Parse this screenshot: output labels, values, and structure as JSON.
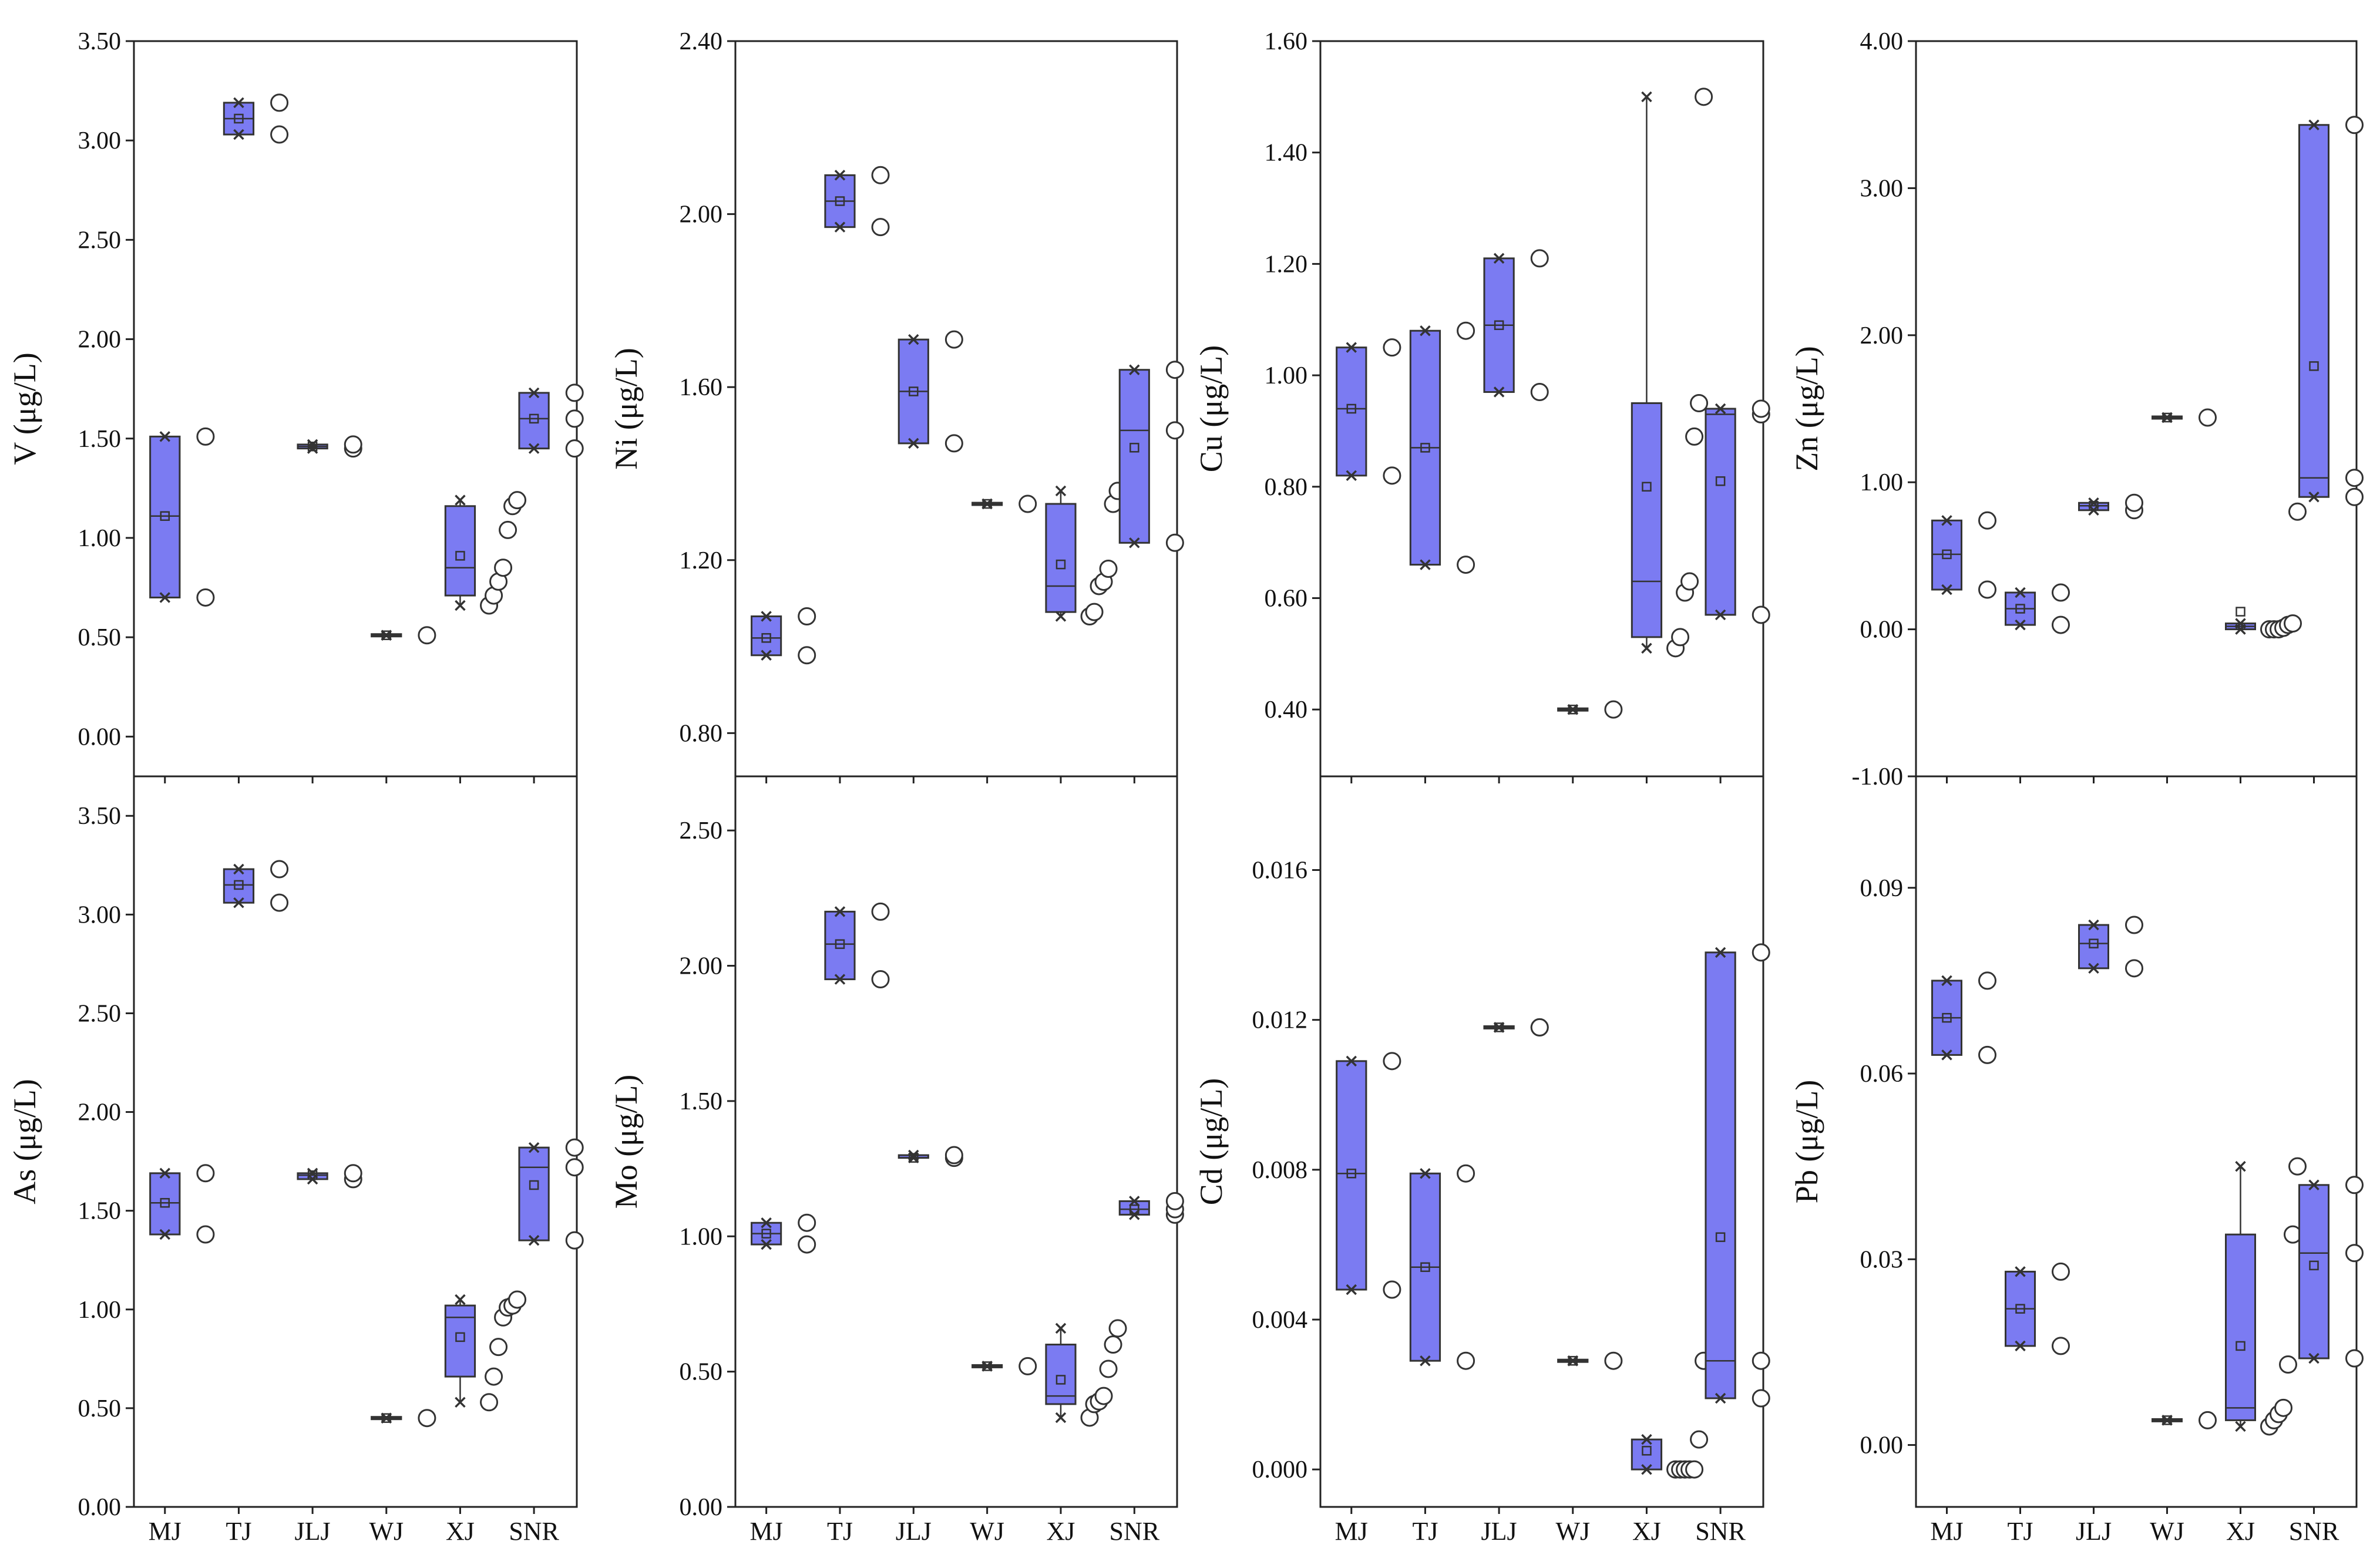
{
  "figure": {
    "categories": [
      "MJ",
      "TJ",
      "JLJ",
      "WJ",
      "XJ",
      "SNR"
    ],
    "colors": {
      "box_fill": "#7b7bf2",
      "box_stroke": "#333333",
      "outlier_fill": "#ffffff"
    }
  },
  "chart_data": [
    {
      "type": "box",
      "ylabel": "V (μg/L)",
      "ylim": [
        -0.2,
        3.5
      ],
      "yticks": [
        "0.00",
        "0.50",
        "1.00",
        "1.50",
        "2.00",
        "2.50",
        "3.00",
        "3.50"
      ],
      "boxes": [
        {
          "category": "MJ",
          "q1": 0.7,
          "median": 1.11,
          "q3": 1.51,
          "mean": 1.11,
          "min": 0.7,
          "max": 1.51,
          "points": [
            0.7,
            1.51
          ]
        },
        {
          "category": "TJ",
          "q1": 3.03,
          "median": 3.11,
          "q3": 3.19,
          "mean": 3.11,
          "min": 3.03,
          "max": 3.19,
          "points": [
            3.03,
            3.19
          ]
        },
        {
          "category": "JLJ",
          "q1": 1.45,
          "median": 1.46,
          "q3": 1.47,
          "mean": 1.46,
          "min": 1.45,
          "max": 1.47,
          "points": [
            1.45,
            1.47
          ]
        },
        {
          "category": "WJ",
          "q1": 0.51,
          "median": 0.51,
          "q3": 0.51,
          "mean": 0.51,
          "min": 0.51,
          "max": 0.51,
          "points": [
            0.51
          ]
        },
        {
          "category": "XJ",
          "q1": 0.71,
          "median": 0.85,
          "q3": 1.16,
          "mean": 0.91,
          "min": 0.66,
          "max": 1.19,
          "points": [
            0.66,
            0.71,
            0.78,
            0.85,
            1.04,
            1.16,
            1.19
          ]
        },
        {
          "category": "SNR",
          "q1": 1.45,
          "median": 1.6,
          "q3": 1.73,
          "mean": 1.6,
          "min": 1.45,
          "max": 1.73,
          "points": [
            1.45,
            1.6,
            1.73
          ]
        }
      ]
    },
    {
      "type": "box",
      "ylabel": "Ni (μg/L)",
      "ylim": [
        0.7,
        2.4
      ],
      "yticks": [
        "0.80",
        "1.20",
        "1.60",
        "2.00",
        "2.40"
      ],
      "boxes": [
        {
          "category": "MJ",
          "q1": 0.98,
          "median": 1.02,
          "q3": 1.07,
          "mean": 1.02,
          "min": 0.98,
          "max": 1.07,
          "points": [
            0.98,
            1.07
          ]
        },
        {
          "category": "TJ",
          "q1": 1.97,
          "median": 2.03,
          "q3": 2.09,
          "mean": 2.03,
          "min": 1.97,
          "max": 2.09,
          "points": [
            1.97,
            2.09
          ]
        },
        {
          "category": "JLJ",
          "q1": 1.47,
          "median": 1.59,
          "q3": 1.71,
          "mean": 1.59,
          "min": 1.47,
          "max": 1.71,
          "points": [
            1.47,
            1.71
          ]
        },
        {
          "category": "WJ",
          "q1": 1.33,
          "median": 1.33,
          "q3": 1.33,
          "mean": 1.33,
          "min": 1.33,
          "max": 1.33,
          "points": [
            1.33
          ]
        },
        {
          "category": "XJ",
          "q1": 1.08,
          "median": 1.14,
          "q3": 1.33,
          "mean": 1.19,
          "min": 1.07,
          "max": 1.36,
          "points": [
            1.07,
            1.08,
            1.14,
            1.15,
            1.18,
            1.33,
            1.36
          ]
        },
        {
          "category": "SNR",
          "q1": 1.24,
          "median": 1.5,
          "q3": 1.64,
          "mean": 1.46,
          "min": 1.24,
          "max": 1.64,
          "points": [
            1.24,
            1.5,
            1.64
          ]
        }
      ]
    },
    {
      "type": "box",
      "ylabel": "Cu (μg/L)",
      "ylim": [
        0.28,
        1.6
      ],
      "yticks": [
        "0.40",
        "0.60",
        "0.80",
        "1.00",
        "1.20",
        "1.40",
        "1.60"
      ],
      "boxes": [
        {
          "category": "MJ",
          "q1": 0.82,
          "median": 0.94,
          "q3": 1.05,
          "mean": 0.94,
          "min": 0.82,
          "max": 1.05,
          "points": [
            0.82,
            1.05
          ]
        },
        {
          "category": "TJ",
          "q1": 0.66,
          "median": 0.87,
          "q3": 1.08,
          "mean": 0.87,
          "min": 0.66,
          "max": 1.08,
          "points": [
            0.66,
            1.08
          ]
        },
        {
          "category": "JLJ",
          "q1": 0.97,
          "median": 1.09,
          "q3": 1.21,
          "mean": 1.09,
          "min": 0.97,
          "max": 1.21,
          "points": [
            0.97,
            1.21
          ]
        },
        {
          "category": "WJ",
          "q1": 0.4,
          "median": 0.4,
          "q3": 0.4,
          "mean": 0.4,
          "min": 0.4,
          "max": 0.4,
          "points": [
            0.4
          ]
        },
        {
          "category": "XJ",
          "q1": 0.53,
          "median": 0.63,
          "q3": 0.95,
          "mean": 0.8,
          "min": 0.51,
          "max": 1.5,
          "points": [
            0.51,
            0.53,
            0.61,
            0.63,
            0.89,
            0.95,
            1.5
          ]
        },
        {
          "category": "SNR",
          "q1": 0.57,
          "median": 0.93,
          "q3": 0.94,
          "mean": 0.81,
          "min": 0.57,
          "max": 0.94,
          "points": [
            0.57,
            0.93,
            0.94
          ]
        }
      ]
    },
    {
      "type": "box",
      "ylabel": "Zn (μg/L)",
      "ylim": [
        -1.0,
        4.0
      ],
      "yticks": [
        "-1.00",
        "0.00",
        "1.00",
        "2.00",
        "3.00",
        "4.00"
      ],
      "boxes": [
        {
          "category": "MJ",
          "q1": 0.27,
          "median": 0.51,
          "q3": 0.74,
          "mean": 0.51,
          "min": 0.27,
          "max": 0.74,
          "points": [
            0.27,
            0.74
          ]
        },
        {
          "category": "TJ",
          "q1": 0.03,
          "median": 0.14,
          "q3": 0.25,
          "mean": 0.14,
          "min": 0.03,
          "max": 0.25,
          "points": [
            0.03,
            0.25
          ]
        },
        {
          "category": "JLJ",
          "q1": 0.81,
          "median": 0.84,
          "q3": 0.86,
          "mean": 0.84,
          "min": 0.81,
          "max": 0.86,
          "points": [
            0.81,
            0.86
          ]
        },
        {
          "category": "WJ",
          "q1": 1.44,
          "median": 1.44,
          "q3": 1.44,
          "mean": 1.44,
          "min": 1.44,
          "max": 1.44,
          "points": [
            1.44
          ]
        },
        {
          "category": "XJ",
          "q1": 0.0,
          "median": 0.02,
          "q3": 0.04,
          "mean": 0.12,
          "min": 0.0,
          "max": 0.04,
          "points": [
            0.0,
            0.0,
            0.0,
            0.01,
            0.03,
            0.04,
            0.8
          ]
        },
        {
          "category": "SNR",
          "q1": 0.9,
          "median": 1.03,
          "q3": 3.43,
          "mean": 1.79,
          "min": 0.9,
          "max": 3.43,
          "points": [
            0.9,
            1.03,
            3.43
          ]
        }
      ]
    },
    {
      "type": "box",
      "ylabel": "As (μg/L)",
      "ylim": [
        0.0,
        3.7
      ],
      "yticks": [
        "0.00",
        "0.50",
        "1.00",
        "1.50",
        "2.00",
        "2.50",
        "3.00",
        "3.50"
      ],
      "boxes": [
        {
          "category": "MJ",
          "q1": 1.38,
          "median": 1.54,
          "q3": 1.69,
          "mean": 1.54,
          "min": 1.38,
          "max": 1.69,
          "points": [
            1.38,
            1.69
          ]
        },
        {
          "category": "TJ",
          "q1": 3.06,
          "median": 3.15,
          "q3": 3.23,
          "mean": 3.15,
          "min": 3.06,
          "max": 3.23,
          "points": [
            3.06,
            3.23
          ]
        },
        {
          "category": "JLJ",
          "q1": 1.66,
          "median": 1.68,
          "q3": 1.69,
          "mean": 1.68,
          "min": 1.66,
          "max": 1.69,
          "points": [
            1.66,
            1.69
          ]
        },
        {
          "category": "WJ",
          "q1": 0.45,
          "median": 0.45,
          "q3": 0.45,
          "mean": 0.45,
          "min": 0.45,
          "max": 0.45,
          "points": [
            0.45
          ]
        },
        {
          "category": "XJ",
          "q1": 0.66,
          "median": 0.96,
          "q3": 1.02,
          "mean": 0.86,
          "min": 0.53,
          "max": 1.05,
          "points": [
            0.53,
            0.66,
            0.81,
            0.96,
            1.01,
            1.02,
            1.05
          ]
        },
        {
          "category": "SNR",
          "q1": 1.35,
          "median": 1.72,
          "q3": 1.82,
          "mean": 1.63,
          "min": 1.35,
          "max": 1.82,
          "points": [
            1.35,
            1.72,
            1.82
          ]
        }
      ]
    },
    {
      "type": "box",
      "ylabel": "Mo (μg/L)",
      "ylim": [
        0.0,
        2.7
      ],
      "yticks": [
        "0.00",
        "0.50",
        "1.00",
        "1.50",
        "2.00",
        "2.50"
      ],
      "boxes": [
        {
          "category": "MJ",
          "q1": 0.97,
          "median": 1.01,
          "q3": 1.05,
          "mean": 1.01,
          "min": 0.97,
          "max": 1.05,
          "points": [
            0.97,
            1.05
          ]
        },
        {
          "category": "TJ",
          "q1": 1.95,
          "median": 2.08,
          "q3": 2.2,
          "mean": 2.08,
          "min": 1.95,
          "max": 2.2,
          "points": [
            1.95,
            2.2
          ]
        },
        {
          "category": "JLJ",
          "q1": 1.29,
          "median": 1.29,
          "q3": 1.3,
          "mean": 1.29,
          "min": 1.29,
          "max": 1.3,
          "points": [
            1.29,
            1.3
          ]
        },
        {
          "category": "WJ",
          "q1": 0.52,
          "median": 0.52,
          "q3": 0.52,
          "mean": 0.52,
          "min": 0.52,
          "max": 0.52,
          "points": [
            0.52
          ]
        },
        {
          "category": "XJ",
          "q1": 0.38,
          "median": 0.41,
          "q3": 0.6,
          "mean": 0.47,
          "min": 0.33,
          "max": 0.66,
          "points": [
            0.33,
            0.38,
            0.39,
            0.41,
            0.51,
            0.6,
            0.66
          ]
        },
        {
          "category": "SNR",
          "q1": 1.08,
          "median": 1.1,
          "q3": 1.13,
          "mean": 1.1,
          "min": 1.08,
          "max": 1.13,
          "points": [
            1.08,
            1.1,
            1.13
          ]
        }
      ]
    },
    {
      "type": "box",
      "ylabel": "Cd (μg/L)",
      "ylim": [
        -0.001,
        0.0185
      ],
      "yticks": [
        "0.000",
        "0.004",
        "0.008",
        "0.012",
        "0.016"
      ],
      "boxes": [
        {
          "category": "MJ",
          "q1": 0.0048,
          "median": 0.0079,
          "q3": 0.0109,
          "mean": 0.0079,
          "min": 0.0048,
          "max": 0.0109,
          "points": [
            0.0048,
            0.0109
          ]
        },
        {
          "category": "TJ",
          "q1": 0.0029,
          "median": 0.0054,
          "q3": 0.0079,
          "mean": 0.0054,
          "min": 0.0029,
          "max": 0.0079,
          "points": [
            0.0029,
            0.0079
          ]
        },
        {
          "category": "JLJ",
          "q1": 0.0118,
          "median": 0.0118,
          "q3": 0.0118,
          "mean": 0.0118,
          "min": 0.0118,
          "max": 0.0118,
          "points": [
            0.0118,
            0.0118
          ]
        },
        {
          "category": "WJ",
          "q1": 0.0029,
          "median": 0.0029,
          "q3": 0.0029,
          "mean": 0.0029,
          "min": 0.0029,
          "max": 0.0029,
          "points": [
            0.0029
          ]
        },
        {
          "category": "XJ",
          "q1": 0.0,
          "median": 0.0,
          "q3": 0.0008,
          "mean": 0.0005,
          "min": 0.0,
          "max": 0.0008,
          "points": [
            0.0,
            0.0,
            0.0,
            0.0,
            0.0,
            0.0008,
            0.0029
          ]
        },
        {
          "category": "SNR",
          "q1": 0.0019,
          "median": 0.0029,
          "q3": 0.0138,
          "mean": 0.0062,
          "min": 0.0019,
          "max": 0.0138,
          "points": [
            0.0019,
            0.0029,
            0.0138
          ]
        }
      ]
    },
    {
      "type": "box",
      "ylabel": "Pb (μg/L)",
      "ylim": [
        -0.01,
        0.108
      ],
      "yticks": [
        "0.00",
        "0.03",
        "0.06",
        "0.09"
      ],
      "boxes": [
        {
          "category": "MJ",
          "q1": 0.063,
          "median": 0.069,
          "q3": 0.075,
          "mean": 0.069,
          "min": 0.063,
          "max": 0.075,
          "points": [
            0.063,
            0.075
          ]
        },
        {
          "category": "TJ",
          "q1": 0.016,
          "median": 0.022,
          "q3": 0.028,
          "mean": 0.022,
          "min": 0.016,
          "max": 0.028,
          "points": [
            0.016,
            0.028
          ]
        },
        {
          "category": "JLJ",
          "q1": 0.077,
          "median": 0.081,
          "q3": 0.084,
          "mean": 0.081,
          "min": 0.077,
          "max": 0.084,
          "points": [
            0.077,
            0.084
          ]
        },
        {
          "category": "WJ",
          "q1": 0.004,
          "median": 0.004,
          "q3": 0.004,
          "mean": 0.004,
          "min": 0.004,
          "max": 0.004,
          "points": [
            0.004
          ]
        },
        {
          "category": "XJ",
          "q1": 0.004,
          "median": 0.006,
          "q3": 0.034,
          "mean": 0.016,
          "min": 0.003,
          "max": 0.045,
          "points": [
            0.003,
            0.004,
            0.005,
            0.006,
            0.013,
            0.034,
            0.045
          ]
        },
        {
          "category": "SNR",
          "q1": 0.014,
          "median": 0.031,
          "q3": 0.042,
          "mean": 0.029,
          "min": 0.014,
          "max": 0.042,
          "points": [
            0.014,
            0.031,
            0.042
          ]
        }
      ]
    }
  ]
}
